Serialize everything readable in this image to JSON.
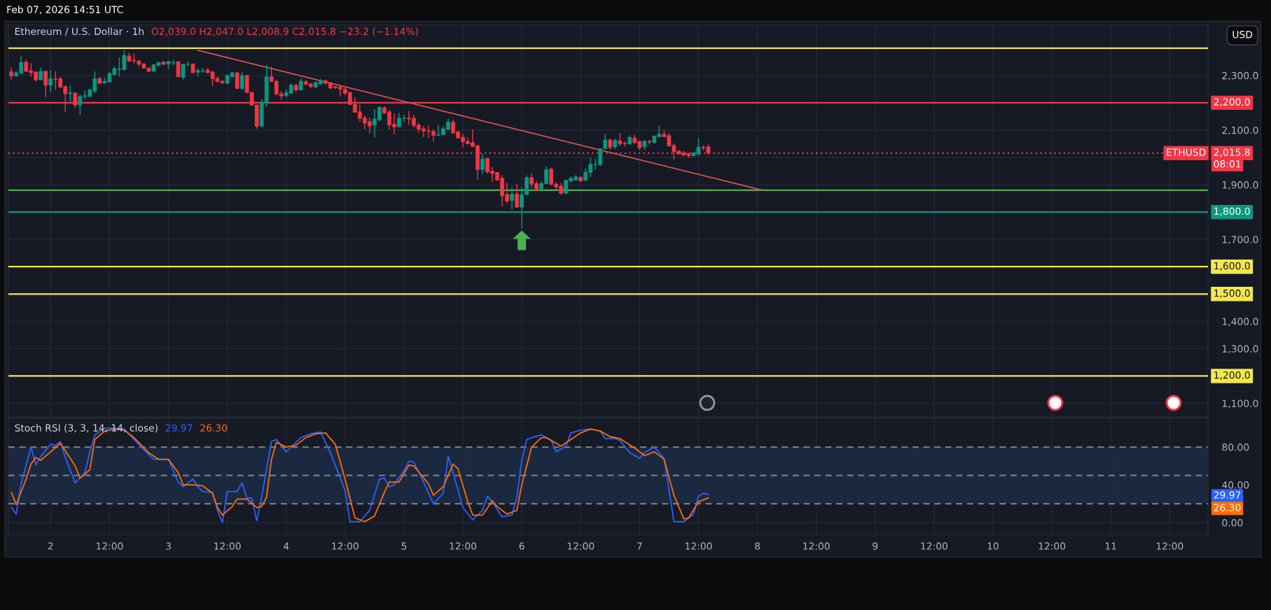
{
  "chart_data": [
    {
      "type": "candlestick",
      "title": "Ethereum / U.S. Dollar · 1h",
      "x": [
        "2026-02-01T16:00",
        "2026-02-01T17:00",
        "2026-02-01T18:00",
        "2026-02-01T19:00",
        "2026-02-01T20:00",
        "2026-02-01T21:00",
        "2026-02-01T22:00",
        "2026-02-01T23:00",
        "2026-02-02T00:00",
        "2026-02-02T01:00",
        "2026-02-02T02:00",
        "2026-02-02T03:00",
        "2026-02-02T04:00",
        "2026-02-02T05:00",
        "2026-02-02T06:00",
        "2026-02-02T07:00",
        "2026-02-02T08:00",
        "2026-02-02T09:00",
        "2026-02-02T10:00",
        "2026-02-02T11:00",
        "2026-02-02T12:00",
        "2026-02-02T13:00",
        "2026-02-02T14:00",
        "2026-02-02T15:00",
        "2026-02-02T16:00",
        "2026-02-02T17:00",
        "2026-02-02T18:00",
        "2026-02-02T19:00",
        "2026-02-02T20:00",
        "2026-02-02T21:00",
        "2026-02-02T22:00",
        "2026-02-02T23:00",
        "2026-02-03T00:00",
        "2026-02-03T01:00",
        "2026-02-03T02:00",
        "2026-02-03T03:00",
        "2026-02-03T04:00",
        "2026-02-03T05:00",
        "2026-02-03T06:00",
        "2026-02-03T07:00",
        "2026-02-03T08:00",
        "2026-02-03T09:00",
        "2026-02-03T10:00",
        "2026-02-03T11:00",
        "2026-02-03T12:00",
        "2026-02-03T13:00",
        "2026-02-03T14:00",
        "2026-02-03T15:00",
        "2026-02-03T16:00",
        "2026-02-03T17:00",
        "2026-02-03T18:00",
        "2026-02-03T19:00",
        "2026-02-03T20:00",
        "2026-02-03T21:00",
        "2026-02-03T22:00",
        "2026-02-03T23:00",
        "2026-02-04T00:00",
        "2026-02-04T01:00",
        "2026-02-04T02:00",
        "2026-02-04T03:00",
        "2026-02-04T04:00",
        "2026-02-04T05:00",
        "2026-02-04T06:00",
        "2026-02-04T07:00",
        "2026-02-04T08:00",
        "2026-02-04T09:00",
        "2026-02-04T10:00",
        "2026-02-04T11:00",
        "2026-02-04T12:00",
        "2026-02-04T13:00",
        "2026-02-04T14:00",
        "2026-02-04T15:00",
        "2026-02-04T16:00",
        "2026-02-04T17:00",
        "2026-02-04T18:00",
        "2026-02-04T19:00",
        "2026-02-04T20:00",
        "2026-02-04T21:00",
        "2026-02-04T22:00",
        "2026-02-04T23:00",
        "2026-02-05T00:00",
        "2026-02-05T01:00",
        "2026-02-05T02:00",
        "2026-02-05T03:00",
        "2026-02-05T04:00",
        "2026-02-05T05:00",
        "2026-02-05T06:00",
        "2026-02-05T07:00",
        "2026-02-05T08:00",
        "2026-02-05T09:00",
        "2026-02-05T10:00",
        "2026-02-05T11:00",
        "2026-02-05T12:00",
        "2026-02-05T13:00",
        "2026-02-05T14:00",
        "2026-02-05T15:00",
        "2026-02-05T16:00",
        "2026-02-05T17:00",
        "2026-02-05T18:00",
        "2026-02-05T19:00",
        "2026-02-05T20:00",
        "2026-02-05T21:00",
        "2026-02-05T22:00",
        "2026-02-05T23:00",
        "2026-02-06T00:00",
        "2026-02-06T01:00",
        "2026-02-06T02:00",
        "2026-02-06T03:00",
        "2026-02-06T04:00",
        "2026-02-06T05:00",
        "2026-02-06T06:00",
        "2026-02-06T07:00",
        "2026-02-06T08:00",
        "2026-02-06T09:00",
        "2026-02-06T10:00",
        "2026-02-06T11:00",
        "2026-02-06T12:00",
        "2026-02-06T13:00",
        "2026-02-06T14:00",
        "2026-02-06T15:00",
        "2026-02-06T16:00",
        "2026-02-06T17:00",
        "2026-02-06T18:00",
        "2026-02-06T19:00",
        "2026-02-06T20:00",
        "2026-02-06T21:00",
        "2026-02-06T22:00",
        "2026-02-06T23:00",
        "2026-02-07T00:00",
        "2026-02-07T01:00",
        "2026-02-07T02:00",
        "2026-02-07T03:00",
        "2026-02-07T04:00",
        "2026-02-07T05:00",
        "2026-02-07T06:00",
        "2026-02-07T07:00",
        "2026-02-07T08:00",
        "2026-02-07T09:00",
        "2026-02-07T10:00",
        "2026-02-07T11:00",
        "2026-02-07T12:00",
        "2026-02-07T13:00",
        "2026-02-07T14:00"
      ],
      "ohlc": [
        [
          2313,
          2330,
          2284,
          2298
        ],
        [
          2298,
          2316,
          2295,
          2310
        ],
        [
          2308,
          2373,
          2308,
          2348
        ],
        [
          2349,
          2358,
          2312,
          2315
        ],
        [
          2318,
          2346,
          2296,
          2310
        ],
        [
          2313,
          2315,
          2277,
          2284
        ],
        [
          2284,
          2330,
          2284,
          2315
        ],
        [
          2315,
          2318,
          2221,
          2264
        ],
        [
          2264,
          2320,
          2238,
          2289
        ],
        [
          2288,
          2315,
          2247,
          2286
        ],
        [
          2288,
          2296,
          2255,
          2257
        ],
        [
          2259,
          2264,
          2165,
          2233
        ],
        [
          2233,
          2264,
          2204,
          2236
        ],
        [
          2236,
          2238,
          2182,
          2192
        ],
        [
          2192,
          2231,
          2155,
          2223
        ],
        [
          2223,
          2247,
          2214,
          2226
        ],
        [
          2223,
          2252,
          2223,
          2247
        ],
        [
          2243,
          2315,
          2235,
          2288
        ],
        [
          2289,
          2295,
          2269,
          2271
        ],
        [
          2272,
          2293,
          2271,
          2279
        ],
        [
          2276,
          2312,
          2276,
          2308
        ],
        [
          2303,
          2332,
          2301,
          2325
        ],
        [
          2322,
          2366,
          2296,
          2324
        ],
        [
          2322,
          2392,
          2318,
          2373
        ],
        [
          2371,
          2383,
          2349,
          2353
        ],
        [
          2356,
          2380,
          2344,
          2354
        ],
        [
          2353,
          2356,
          2332,
          2341
        ],
        [
          2342,
          2346,
          2325,
          2327
        ],
        [
          2327,
          2330,
          2312,
          2315
        ],
        [
          2315,
          2342,
          2315,
          2339
        ],
        [
          2336,
          2349,
          2334,
          2348
        ],
        [
          2349,
          2353,
          2337,
          2341
        ],
        [
          2342,
          2354,
          2324,
          2351
        ],
        [
          2346,
          2358,
          2337,
          2348
        ],
        [
          2351,
          2351,
          2295,
          2295
        ],
        [
          2293,
          2341,
          2283,
          2341
        ],
        [
          2341,
          2351,
          2332,
          2342
        ],
        [
          2342,
          2344,
          2310,
          2310
        ],
        [
          2312,
          2325,
          2295,
          2318
        ],
        [
          2315,
          2329,
          2310,
          2317
        ],
        [
          2320,
          2327,
          2308,
          2310
        ],
        [
          2313,
          2317,
          2262,
          2288
        ],
        [
          2289,
          2296,
          2276,
          2277
        ],
        [
          2279,
          2283,
          2271,
          2272
        ],
        [
          2271,
          2303,
          2269,
          2300
        ],
        [
          2295,
          2313,
          2293,
          2310
        ],
        [
          2310,
          2312,
          2252,
          2252
        ],
        [
          2252,
          2312,
          2250,
          2300
        ],
        [
          2300,
          2300,
          2237,
          2237
        ],
        [
          2238,
          2240,
          2189,
          2191
        ],
        [
          2192,
          2194,
          2105,
          2114
        ],
        [
          2114,
          2214,
          2112,
          2202
        ],
        [
          2199,
          2339,
          2185,
          2295
        ],
        [
          2295,
          2332,
          2276,
          2278
        ],
        [
          2279,
          2283,
          2228,
          2232
        ],
        [
          2233,
          2243,
          2211,
          2225
        ],
        [
          2226,
          2250,
          2221,
          2237
        ],
        [
          2235,
          2272,
          2233,
          2264
        ],
        [
          2264,
          2271,
          2240,
          2247
        ],
        [
          2247,
          2291,
          2245,
          2279
        ],
        [
          2278,
          2283,
          2266,
          2267
        ],
        [
          2269,
          2272,
          2254,
          2259
        ],
        [
          2257,
          2278,
          2257,
          2274
        ],
        [
          2269,
          2286,
          2266,
          2281
        ],
        [
          2281,
          2284,
          2266,
          2272
        ],
        [
          2274,
          2274,
          2250,
          2254
        ],
        [
          2259,
          2262,
          2250,
          2255
        ],
        [
          2257,
          2262,
          2223,
          2250
        ],
        [
          2250,
          2257,
          2228,
          2235
        ],
        [
          2238,
          2240,
          2192,
          2194
        ],
        [
          2194,
          2221,
          2165,
          2165
        ],
        [
          2167,
          2192,
          2132,
          2143
        ],
        [
          2144,
          2153,
          2103,
          2126
        ],
        [
          2131,
          2146,
          2088,
          2115
        ],
        [
          2119,
          2177,
          2073,
          2141
        ],
        [
          2138,
          2187,
          2131,
          2184
        ],
        [
          2182,
          2187,
          2158,
          2163
        ],
        [
          2167,
          2173,
          2103,
          2119
        ],
        [
          2122,
          2160,
          2085,
          2112
        ],
        [
          2112,
          2163,
          2110,
          2144
        ],
        [
          2143,
          2156,
          2131,
          2144
        ],
        [
          2144,
          2170,
          2119,
          2141
        ],
        [
          2143,
          2156,
          2110,
          2117
        ],
        [
          2119,
          2126,
          2091,
          2103
        ],
        [
          2105,
          2115,
          2074,
          2097
        ],
        [
          2097,
          2117,
          2071,
          2095
        ],
        [
          2095,
          2102,
          2057,
          2081
        ],
        [
          2081,
          2119,
          2081,
          2083
        ],
        [
          2083,
          2115,
          2081,
          2105
        ],
        [
          2102,
          2143,
          2100,
          2129
        ],
        [
          2129,
          2138,
          2085,
          2090
        ],
        [
          2093,
          2098,
          2069,
          2071
        ],
        [
          2074,
          2086,
          2037,
          2057
        ],
        [
          2059,
          2073,
          2047,
          2050
        ],
        [
          2054,
          2103,
          2038,
          2040
        ],
        [
          2042,
          2047,
          1919,
          1955
        ],
        [
          1955,
          2013,
          1939,
          1994
        ],
        [
          1996,
          1998,
          1941,
          1946
        ],
        [
          1950,
          1965,
          1910,
          1941
        ],
        [
          1945,
          1946,
          1914,
          1917
        ],
        [
          1924,
          1936,
          1820,
          1859
        ],
        [
          1864,
          1907,
          1833,
          1840
        ],
        [
          1842,
          1892,
          1810,
          1866
        ],
        [
          1866,
          1902,
          1816,
          1818
        ],
        [
          1818,
          1890,
          1740,
          1864
        ],
        [
          1864,
          1934,
          1863,
          1926
        ],
        [
          1926,
          1943,
          1888,
          1902
        ],
        [
          1904,
          1914,
          1876,
          1885
        ],
        [
          1885,
          1914,
          1883,
          1905
        ],
        [
          1904,
          1968,
          1902,
          1955
        ],
        [
          1957,
          1962,
          1898,
          1902
        ],
        [
          1902,
          1910,
          1883,
          1892
        ],
        [
          1895,
          1907,
          1863,
          1868
        ],
        [
          1868,
          1919,
          1868,
          1916
        ],
        [
          1914,
          1931,
          1907,
          1924
        ],
        [
          1917,
          1936,
          1916,
          1929
        ],
        [
          1928,
          1929,
          1910,
          1914
        ],
        [
          1916,
          1960,
          1914,
          1946
        ],
        [
          1945,
          1999,
          1929,
          1975
        ],
        [
          1974,
          1994,
          1955,
          1975
        ],
        [
          1974,
          2033,
          1968,
          2032
        ],
        [
          2032,
          2086,
          2030,
          2064
        ],
        [
          2064,
          2069,
          2028,
          2037
        ],
        [
          2039,
          2069,
          2030,
          2062
        ],
        [
          2061,
          2090,
          2042,
          2050
        ],
        [
          2052,
          2059,
          2040,
          2050
        ],
        [
          2049,
          2081,
          2047,
          2073
        ],
        [
          2071,
          2083,
          2050,
          2054
        ],
        [
          2059,
          2061,
          2027,
          2035
        ],
        [
          2039,
          2064,
          2028,
          2059
        ],
        [
          2059,
          2064,
          2047,
          2056
        ],
        [
          2054,
          2081,
          2052,
          2078
        ],
        [
          2076,
          2115,
          2076,
          2085
        ],
        [
          2085,
          2100,
          2074,
          2076
        ],
        [
          2080,
          2090,
          2040,
          2042
        ],
        [
          2044,
          2052,
          1992,
          2021
        ],
        [
          2023,
          2027,
          2011,
          2013
        ],
        [
          2016,
          2025,
          2006,
          2008
        ],
        [
          2013,
          2018,
          1999,
          2006
        ],
        [
          2006,
          2021,
          2004,
          2016
        ],
        [
          2011,
          2071,
          2009,
          2038
        ],
        [
          2037,
          2045,
          2026,
          2035
        ],
        [
          2039.0,
          2047.0,
          2008.9,
          2015.8
        ]
      ],
      "colors": [
        "#f23645",
        "#089981",
        "#089981",
        "#f23645",
        "#f23645",
        "#f23645",
        "#089981",
        "#f23645",
        "#089981",
        "#f23645",
        "#f23645",
        "#f23645",
        "#089981",
        "#f23645",
        "#089981",
        "#089981",
        "#089981",
        "#089981",
        "#f23645",
        "#089981",
        "#089981",
        "#089981",
        "#089981",
        "#089981",
        "#f23645",
        "#f23645",
        "#f23645",
        "#f23645",
        "#f23645",
        "#089981",
        "#089981",
        "#f23645",
        "#089981",
        "#089981",
        "#f23645",
        "#089981",
        "#089981",
        "#f23645",
        "#089981",
        "#089981",
        "#f23645",
        "#f23645",
        "#f23645",
        "#f23645",
        "#089981",
        "#089981",
        "#f23645",
        "#089981",
        "#f23645",
        "#f23645",
        "#f23645",
        "#089981",
        "#089981",
        "#f23645",
        "#f23645",
        "#f23645",
        "#089981",
        "#089981",
        "#f23645",
        "#089981",
        "#f23645",
        "#f23645",
        "#089981",
        "#089981",
        "#f23645",
        "#f23645",
        "#f23645",
        "#f23645",
        "#f23645",
        "#f23645",
        "#f23645",
        "#f23645",
        "#f23645",
        "#f23645",
        "#089981",
        "#089981",
        "#f23645",
        "#f23645",
        "#f23645",
        "#089981",
        "#089981",
        "#f23645",
        "#f23645",
        "#f23645",
        "#f23645",
        "#f23645",
        "#f23645",
        "#089981",
        "#089981",
        "#089981",
        "#f23645",
        "#f23645",
        "#f23645",
        "#f23645",
        "#f23645",
        "#f23645",
        "#089981",
        "#f23645",
        "#f23645",
        "#f23645",
        "#f23645",
        "#f23645",
        "#089981",
        "#f23645",
        "#089981",
        "#089981",
        "#f23645",
        "#f23645",
        "#089981",
        "#089981",
        "#f23645",
        "#f23645",
        "#f23645",
        "#089981",
        "#089981",
        "#089981",
        "#f23645",
        "#089981",
        "#089981",
        "#089981",
        "#089981",
        "#089981",
        "#f23645",
        "#089981",
        "#f23645",
        "#f23645",
        "#089981",
        "#f23645",
        "#f23645",
        "#089981",
        "#f23645",
        "#089981",
        "#089981",
        "#f23645",
        "#f23645",
        "#f23645",
        "#f23645",
        "#f23645",
        "#f23645",
        "#089981",
        "#089981",
        "#f23645",
        "#f23645"
      ],
      "series": [
        {
          "type": "line",
          "color": "#e0524f",
          "x": [
            "2026-02-03T06:00",
            "2026-02-08T01:00"
          ],
          "values": [
            2392,
            1880
          ]
        }
      ],
      "xlim": [
        "2026-02-01T15:24",
        "2026-02-11T19:48"
      ],
      "xticks": [
        {
          "value": "2026-02-02T00:00",
          "label": null
        },
        {
          "value": "2026-02-02T12:00",
          "label": null
        },
        {
          "value": "2026-02-03T00:00",
          "label": null
        },
        {
          "value": "2026-02-03T12:00",
          "label": null
        },
        {
          "value": "2026-02-04T00:00",
          "label": null
        },
        {
          "value": "2026-02-04T12:00",
          "label": null
        },
        {
          "value": "2026-02-05T00:00",
          "label": null
        },
        {
          "value": "2026-02-05T12:00",
          "label": null
        },
        {
          "value": "2026-02-06T00:00",
          "label": null
        },
        {
          "value": "2026-02-06T12:00",
          "label": null
        },
        {
          "value": "2026-02-07T00:00",
          "label": null
        },
        {
          "value": "2026-02-07T12:00",
          "label": null
        },
        {
          "value": "2026-02-08T00:00",
          "label": null
        },
        {
          "value": "2026-02-08T12:00",
          "label": null
        },
        {
          "value": "2026-02-09T00:00",
          "label": null
        },
        {
          "value": "2026-02-09T12:00",
          "label": null
        },
        {
          "value": "2026-02-10T00:00",
          "label": null
        },
        {
          "value": "2026-02-10T12:00",
          "label": null
        },
        {
          "value": "2026-02-11T00:00",
          "label": null
        },
        {
          "value": "2026-02-11T12:00",
          "label": null
        }
      ],
      "ylim": [
        1050,
        2484
      ],
      "yticks": [
        {
          "value": 1100,
          "label": "1,100.0"
        },
        {
          "value": 1200,
          "label": null
        },
        {
          "value": 1300,
          "label": "1,300.0"
        },
        {
          "value": 1400,
          "label": "1,400.0"
        },
        {
          "value": 1500,
          "label": null
        },
        {
          "value": 1600,
          "label": null
        },
        {
          "value": 1700,
          "label": "1,700.0"
        },
        {
          "value": 1800,
          "label": null
        },
        {
          "value": 1900,
          "label": "1,900.0"
        },
        {
          "value": 2000,
          "label": null
        },
        {
          "value": 2100,
          "label": "2,100.0"
        },
        {
          "value": 2200,
          "label": null
        },
        {
          "value": 2300,
          "label": "2,300.0"
        }
      ],
      "tick_labels": "y",
      "grid": true,
      "ref_lines": [
        {
          "axis": "y",
          "value": 2400,
          "label": null,
          "color": "#f5e74a"
        },
        {
          "axis": "y",
          "value": 2200,
          "label": "2,200.0",
          "color": "#f23645"
        },
        {
          "axis": "y",
          "value": 2015.8,
          "label": "2,015.8",
          "color": "#f23645",
          "line_style": "dotted"
        },
        {
          "axis": "y",
          "value": 1880,
          "label": null,
          "color": "#4caf50"
        },
        {
          "axis": "y",
          "value": 1800,
          "label": "1,800.0",
          "color": "#089981"
        },
        {
          "axis": "y",
          "value": 1600,
          "label": "1,600.0",
          "color": "#f5e74b"
        },
        {
          "axis": "y",
          "value": 1500,
          "label": "1,500.0",
          "color": "#f5e74c"
        },
        {
          "axis": "y",
          "value": 1200,
          "label": "1,200.0",
          "color": "#f5e74d"
        }
      ],
      "annotations": [
        "Feb 07, 2026 14:51 UTC",
        "O2,039.0 H2,047.0 L2,008.9 C2,015.8 −23.2 (−1.14%)",
        "USD",
        "ETHUSD",
        "08:01"
      ]
    },
    {
      "type": "line",
      "title": "Stoch RSI (3, 3, 14, 14, close)",
      "series": [
        {
          "color": "#2962ff",
          "x": [
            "2026-02-01T16:00",
            "2026-02-01T17:00",
            "2026-02-01T18:00",
            "2026-02-01T20:00",
            "2026-02-01T21:00",
            "2026-02-01T22:00",
            "2026-02-02T00:00",
            "2026-02-02T01:00",
            "2026-02-02T02:00",
            "2026-02-02T03:00",
            "2026-02-02T05:00",
            "2026-02-02T07:00",
            "2026-02-02T08:00",
            "2026-02-02T09:00",
            "2026-02-02T11:00",
            "2026-02-02T13:00",
            "2026-02-02T15:00",
            "2026-02-02T17:00",
            "2026-02-02T20:00",
            "2026-02-02T21:00",
            "2026-02-03T00:00",
            "2026-02-03T02:00",
            "2026-02-03T03:00",
            "2026-02-03T05:00",
            "2026-02-03T06:00",
            "2026-02-03T07:00",
            "2026-02-03T09:00",
            "2026-02-03T10:00",
            "2026-02-03T11:00",
            "2026-02-03T12:00",
            "2026-02-03T14:00",
            "2026-02-03T15:00",
            "2026-02-03T16:00",
            "2026-02-03T17:00",
            "2026-02-03T18:00",
            "2026-02-03T19:00",
            "2026-02-03T21:00",
            "2026-02-03T22:00",
            "2026-02-04T00:00",
            "2026-02-04T01:00",
            "2026-02-04T03:00",
            "2026-02-04T05:00",
            "2026-02-04T07:00",
            "2026-02-04T09:00",
            "2026-02-04T12:00",
            "2026-02-04T13:00",
            "2026-02-04T15:00",
            "2026-02-04T17:00",
            "2026-02-04T19:00",
            "2026-02-04T20:00",
            "2026-02-04T21:00",
            "2026-02-04T22:00",
            "2026-02-05T00:00",
            "2026-02-05T01:00",
            "2026-02-05T02:00",
            "2026-02-05T04:00",
            "2026-02-05T06:00",
            "2026-02-05T08:00",
            "2026-02-05T09:00",
            "2026-02-05T10:00",
            "2026-02-05T12:00",
            "2026-02-05T14:00",
            "2026-02-05T16:00",
            "2026-02-05T17:00",
            "2026-02-05T18:00",
            "2026-02-05T20:00",
            "2026-02-05T22:00",
            "2026-02-05T23:00",
            "2026-02-06T00:00",
            "2026-02-06T01:00",
            "2026-02-06T02:00",
            "2026-02-06T04:00",
            "2026-02-06T06:00",
            "2026-02-06T07:00",
            "2026-02-06T09:00",
            "2026-02-06T10:00",
            "2026-02-06T12:00",
            "2026-02-06T14:00",
            "2026-02-06T16:00",
            "2026-02-06T17:00",
            "2026-02-06T19:00",
            "2026-02-06T20:00",
            "2026-02-06T22:00",
            "2026-02-07T00:00",
            "2026-02-07T01:00",
            "2026-02-07T03:00",
            "2026-02-07T05:00",
            "2026-02-07T07:00",
            "2026-02-07T09:00",
            "2026-02-07T11:00",
            "2026-02-07T12:00",
            "2026-02-07T13:00",
            "2026-02-07T14:00"
          ],
          "values": [
            16,
            9,
            41,
            80,
            61,
            70,
            83,
            82,
            86,
            69,
            42,
            53,
            75,
            93,
            100,
            100,
            99,
            88,
            72,
            67,
            67,
            43,
            38,
            46,
            38,
            33,
            32,
            13,
            0,
            33,
            33,
            42,
            26,
            26,
            2,
            27,
            86,
            88,
            75,
            80,
            90,
            94,
            96,
            74,
            34,
            1,
            1,
            13,
            46,
            47,
            38,
            40,
            55,
            65,
            64,
            43,
            20,
            31,
            70,
            53,
            16,
            3,
            13,
            28,
            22,
            6,
            8,
            27,
            66,
            88,
            90,
            93,
            87,
            75,
            81,
            95,
            98,
            99,
            97,
            89,
            89,
            87,
            74,
            68,
            74,
            80,
            68,
            1,
            1,
            9,
            28,
            31,
            29.97
          ]
        },
        {
          "color": "#ff6d00",
          "x": [
            "2026-02-01T16:00",
            "2026-02-01T17:00",
            "2026-02-01T19:00",
            "2026-02-01T20:00",
            "2026-02-01T21:00",
            "2026-02-01T22:00",
            "2026-02-02T00:00",
            "2026-02-02T02:00",
            "2026-02-02T03:00",
            "2026-02-02T05:00",
            "2026-02-02T06:00",
            "2026-02-02T08:00",
            "2026-02-02T09:00",
            "2026-02-02T11:00",
            "2026-02-02T13:00",
            "2026-02-02T15:00",
            "2026-02-02T17:00",
            "2026-02-02T20:00",
            "2026-02-02T22:00",
            "2026-02-03T00:00",
            "2026-02-03T02:00",
            "2026-02-03T03:00",
            "2026-02-03T05:00",
            "2026-02-03T07:00",
            "2026-02-03T09:00",
            "2026-02-03T10:00",
            "2026-02-03T11:00",
            "2026-02-03T13:00",
            "2026-02-03T14:00",
            "2026-02-03T16:00",
            "2026-02-03T18:00",
            "2026-02-03T19:00",
            "2026-02-03T20:00",
            "2026-02-03T21:00",
            "2026-02-03T22:00",
            "2026-02-04T00:00",
            "2026-02-04T02:00",
            "2026-02-04T04:00",
            "2026-02-04T06:00",
            "2026-02-04T08:00",
            "2026-02-04T10:00",
            "2026-02-04T12:00",
            "2026-02-04T14:00",
            "2026-02-04T16:00",
            "2026-02-04T18:00",
            "2026-02-04T20:00",
            "2026-02-04T21:00",
            "2026-02-04T23:00",
            "2026-02-05T01:00",
            "2026-02-05T02:00",
            "2026-02-05T05:00",
            "2026-02-05T06:00",
            "2026-02-05T08:00",
            "2026-02-05T10:00",
            "2026-02-05T11:00",
            "2026-02-05T13:00",
            "2026-02-05T14:00",
            "2026-02-05T16:00",
            "2026-02-05T18:00",
            "2026-02-05T19:00",
            "2026-02-05T21:00",
            "2026-02-05T23:00",
            "2026-02-06T00:00",
            "2026-02-06T02:00",
            "2026-02-06T04:00",
            "2026-02-06T05:00",
            "2026-02-06T08:00",
            "2026-02-06T10:00",
            "2026-02-06T12:00",
            "2026-02-06T14:00",
            "2026-02-06T16:00",
            "2026-02-06T18:00",
            "2026-02-06T20:00",
            "2026-02-06T23:00",
            "2026-02-07T01:00",
            "2026-02-07T03:00",
            "2026-02-07T05:00",
            "2026-02-07T07:00",
            "2026-02-07T09:00",
            "2026-02-07T10:00",
            "2026-02-07T12:00",
            "2026-02-07T14:00"
          ],
          "values": [
            32,
            19,
            46,
            62,
            69,
            66,
            75,
            84,
            76,
            60,
            47,
            56,
            88,
            97,
            99,
            98,
            90,
            74,
            67,
            67,
            53,
            40,
            40,
            39,
            31,
            16,
            8,
            17,
            25,
            25,
            16,
            17,
            27,
            67,
            85,
            80,
            82,
            90,
            94,
            95,
            83,
            46,
            5,
            1,
            7,
            32,
            43,
            43,
            61,
            60,
            41,
            29,
            38,
            62,
            57,
            22,
            8,
            8,
            23,
            17,
            9,
            13,
            40,
            80,
            90,
            90,
            81,
            88,
            95,
            99,
            97,
            91,
            89,
            79,
            71,
            75,
            67,
            29,
            4,
            5,
            22,
            26.3
          ]
        }
      ],
      "xlim": [
        "2026-02-01T15:24",
        "2026-02-11T19:48"
      ],
      "xticks": [
        {
          "value": "2026-02-02T00:00",
          "label": "2"
        },
        {
          "value": "2026-02-02T12:00",
          "label": "12:00"
        },
        {
          "value": "2026-02-03T00:00",
          "label": "3"
        },
        {
          "value": "2026-02-03T12:00",
          "label": "12:00"
        },
        {
          "value": "2026-02-04T00:00",
          "label": "4"
        },
        {
          "value": "2026-02-04T12:00",
          "label": "12:00"
        },
        {
          "value": "2026-02-05T00:00",
          "label": "5"
        },
        {
          "value": "2026-02-05T12:00",
          "label": "12:00"
        },
        {
          "value": "2026-02-06T00:00",
          "label": "6"
        },
        {
          "value": "2026-02-06T12:00",
          "label": "12:00"
        },
        {
          "value": "2026-02-07T00:00",
          "label": "7"
        },
        {
          "value": "2026-02-07T12:00",
          "label": "12:00"
        },
        {
          "value": "2026-02-08T00:00",
          "label": "8"
        },
        {
          "value": "2026-02-08T12:00",
          "label": "12:00"
        },
        {
          "value": "2026-02-09T00:00",
          "label": "9"
        },
        {
          "value": "2026-02-09T12:00",
          "label": "12:00"
        },
        {
          "value": "2026-02-10T00:00",
          "label": "10"
        },
        {
          "value": "2026-02-10T12:00",
          "label": "12:00"
        },
        {
          "value": "2026-02-11T00:00",
          "label": "11"
        },
        {
          "value": "2026-02-11T12:00",
          "label": "12:00"
        }
      ],
      "ylim": [
        -12.5,
        110.5
      ],
      "yticks": [
        {
          "value": 0,
          "label": "0.00"
        },
        {
          "value": 40,
          "label": "40.00"
        },
        {
          "value": 80,
          "label": "80.00"
        }
      ],
      "grid": true,
      "ref_lines": [
        {
          "axis": "y",
          "value": 80,
          "label": null,
          "color": "#787b86",
          "line_style": "dashed"
        },
        {
          "axis": "y",
          "value": 50,
          "label": null,
          "color": "#787b87",
          "line_style": "dashed"
        },
        {
          "axis": "y",
          "value": 20,
          "label": null,
          "color": "#787b88",
          "line_style": "dashed"
        }
      ],
      "bands": [
        {
          "axis": "y",
          "from": 20,
          "to": 80,
          "color": "#1b2940"
        }
      ],
      "annotations": [
        "29.97",
        "26.30",
        "29.97",
        "26.30"
      ]
    }
  ]
}
